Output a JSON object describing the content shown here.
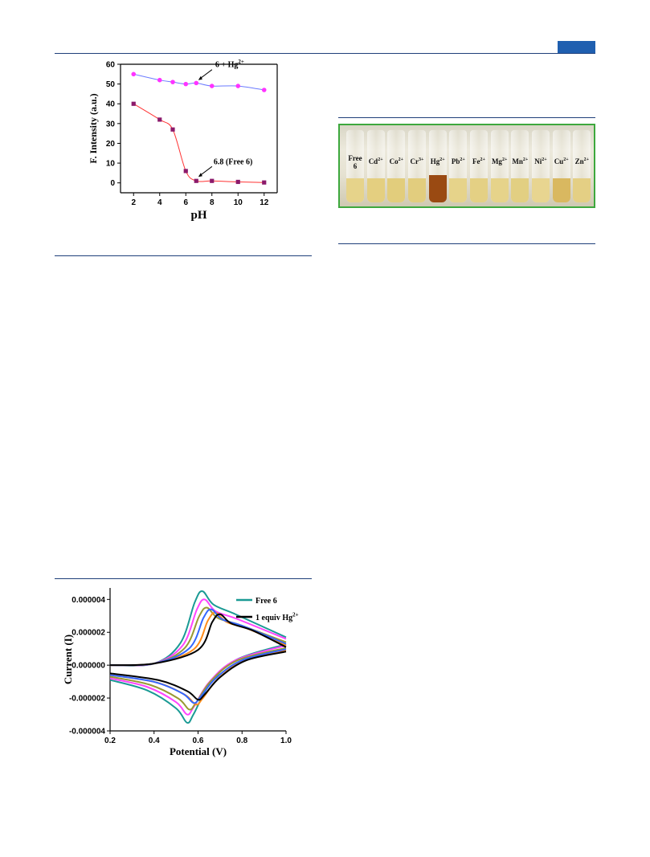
{
  "colors": {
    "rule": "#1f3f7a",
    "tab": "#1f5fb0",
    "photo_border": "#3da83d"
  },
  "chart_data": [
    {
      "type": "line",
      "title": "",
      "xlabel": "pH",
      "ylabel": "F. Intensity (a.u.)",
      "xlim": [
        1,
        13
      ],
      "ylim": [
        -5,
        60
      ],
      "xticks": [
        "2",
        "4",
        "6",
        "8",
        "10",
        "12"
      ],
      "yticks": [
        "0",
        "10",
        "20",
        "30",
        "40",
        "50",
        "60"
      ],
      "series": [
        {
          "name": "6 + Hg2+",
          "color": "#ff33ff",
          "line_color": "#6b7bff",
          "marker": "circle",
          "x": [
            2,
            4,
            5,
            6,
            6.8,
            8,
            10,
            12
          ],
          "y": [
            55,
            52,
            51,
            50,
            50.5,
            49,
            49,
            47
          ]
        },
        {
          "name": "6.8 (Free 6)",
          "color": "#8b1a6b",
          "line_color": "#ff3333",
          "marker": "square",
          "x": [
            2,
            4,
            5,
            6,
            6.8,
            8,
            10,
            12
          ],
          "y": [
            40,
            32,
            27,
            6,
            1,
            1,
            0.5,
            0.2
          ]
        }
      ],
      "annotations": [
        {
          "text_main": "6 + Hg",
          "text_sup": "2+",
          "arrow_to": [
            6.9,
            52
          ]
        },
        {
          "text": "6.8 (Free 6)",
          "arrow_to": [
            6.9,
            3
          ]
        }
      ]
    },
    {
      "type": "line",
      "title": "",
      "xlabel": "Potential (V)",
      "ylabel": "Current (I)",
      "xlim": [
        0.2,
        1.0
      ],
      "ylim": [
        -4e-06,
        4.7e-06
      ],
      "xticks": [
        "0.2",
        "0.4",
        "0.6",
        "0.8",
        "1.0"
      ],
      "yticks": [
        "-0.000004",
        "-0.000002",
        "0.000000",
        "0.000002",
        "0.000004"
      ],
      "legend": [
        {
          "label_main": "Free 6",
          "label_sup": "",
          "color": "#1a9a94"
        },
        {
          "label_main": "1 equiv Hg",
          "label_sup": "2+",
          "color": "#000000"
        }
      ],
      "series": [
        {
          "name": "Free 6",
          "color": "#1a9a94",
          "anodic_peak": [
            0.62,
            4.5e-06
          ],
          "cathodic_peak": [
            0.55,
            -3.5e-06
          ],
          "end_value": 1.7e-06,
          "start_value": -9e-07
        },
        {
          "name": "",
          "color": "#ff44ff",
          "anodic_peak": [
            0.63,
            4e-06
          ],
          "cathodic_peak": [
            0.55,
            -3e-06
          ],
          "end_value": 1.6e-06,
          "start_value": -8e-07
        },
        {
          "name": "",
          "color": "#999933",
          "anodic_peak": [
            0.64,
            3.5e-06
          ],
          "cathodic_peak": [
            0.56,
            -2.7e-06
          ],
          "end_value": 1.4e-06,
          "start_value": -7e-07
        },
        {
          "name": "",
          "color": "#ff8c1a",
          "anodic_peak": [
            0.68,
            3.2e-06
          ],
          "cathodic_peak": [
            0.59,
            -2.4e-06
          ],
          "end_value": 1.2e-06,
          "start_value": -6e-07
        },
        {
          "name": "",
          "color": "#3366ff",
          "anodic_peak": [
            0.66,
            3.4e-06
          ],
          "cathodic_peak": [
            0.58,
            -2.3e-06
          ],
          "end_value": 1.3e-06,
          "start_value": -6e-07
        },
        {
          "name": "1 equiv Hg2+",
          "color": "#000000",
          "anodic_peak": [
            0.7,
            3.1e-06
          ],
          "cathodic_peak": [
            0.6,
            -2.1e-06
          ],
          "end_value": 1.1e-06,
          "start_value": -5e-07
        }
      ]
    }
  ],
  "photo": {
    "labels": [
      {
        "main": "Free",
        "sup": "",
        "sub_line": "6"
      },
      {
        "main": "Cd",
        "sup": "2+",
        "sub_line": ""
      },
      {
        "main": "Co",
        "sup": "2+",
        "sub_line": ""
      },
      {
        "main": "Cr",
        "sup": "3+",
        "sub_line": ""
      },
      {
        "main": "Hg",
        "sup": "2+",
        "sub_line": ""
      },
      {
        "main": "Pb",
        "sup": "2+",
        "sub_line": ""
      },
      {
        "main": "Fe",
        "sup": "2+",
        "sub_line": ""
      },
      {
        "main": "Mg",
        "sup": "2+",
        "sub_line": ""
      },
      {
        "main": "Mn",
        "sup": "2+",
        "sub_line": ""
      },
      {
        "main": "Ni",
        "sup": "2+",
        "sub_line": ""
      },
      {
        "main": "Cu",
        "sup": "2+",
        "sub_line": ""
      },
      {
        "main": "Zn",
        "sup": "2+",
        "sub_line": ""
      }
    ],
    "liquid_colors": [
      "#e6d38a",
      "#e4cf80",
      "#e2cd7c",
      "#e2cd7e",
      "#9a4a12",
      "#e6d38a",
      "#e4d084",
      "#e6d38a",
      "#e2cf82",
      "#e8d590",
      "#d9b860",
      "#e4cf84"
    ]
  }
}
